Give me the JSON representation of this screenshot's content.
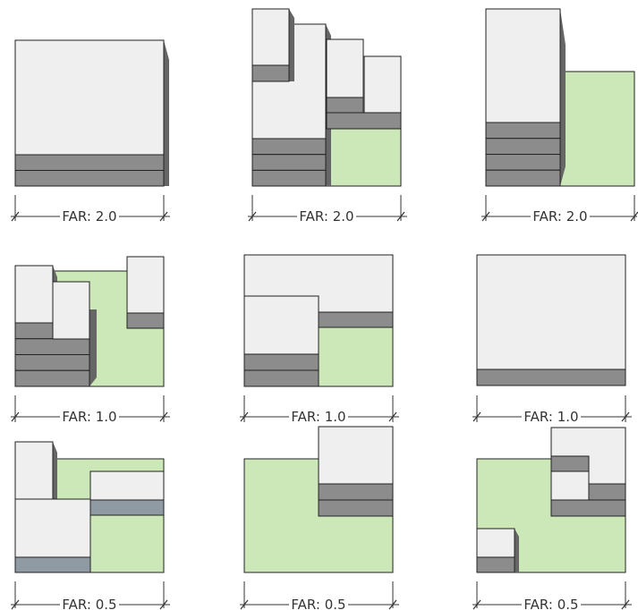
{
  "colors": {
    "lot": "#cde8b8",
    "building_face": "#efefef",
    "floor_band": "#8c8c8c",
    "floor_band_blue": "#8f9aa3",
    "shadow": "#666666",
    "outline": "#222222",
    "dimension_line": "#333333"
  },
  "panels": [
    {
      "label": "FAR: 2.0"
    },
    {
      "label": "FAR: 2.0"
    },
    {
      "label": "FAR: 2.0"
    },
    {
      "label": "FAR: 1.0"
    },
    {
      "label": "FAR: 1.0"
    },
    {
      "label": "FAR: 1.0"
    },
    {
      "label": "FAR: 0.5"
    },
    {
      "label": "FAR: 0.5"
    },
    {
      "label": "FAR: 0.5"
    }
  ]
}
